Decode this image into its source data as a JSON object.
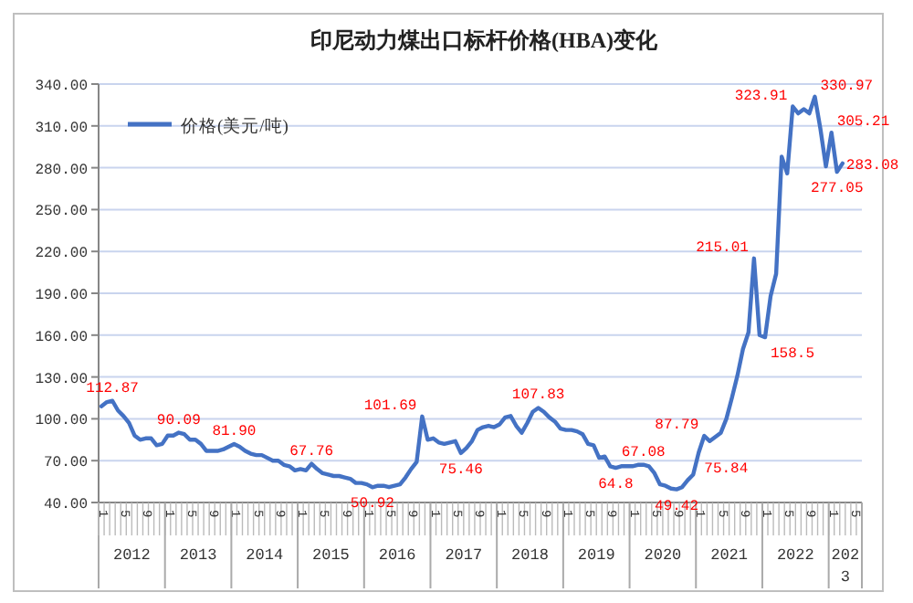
{
  "chart_data": {
    "type": "line",
    "title": "印尼动力煤出口标杆价格(HBA)变化",
    "categories": [
      "1",
      null,
      null,
      null,
      "5",
      null,
      null,
      null,
      "9",
      null,
      null,
      null,
      "1",
      null,
      null,
      null,
      "5",
      null,
      null,
      null,
      "9",
      null,
      null,
      null,
      "1",
      null,
      null,
      null,
      "5",
      null,
      null,
      null,
      "9",
      null,
      null,
      null,
      "1",
      null,
      null,
      null,
      "5",
      null,
      null,
      null,
      "9",
      null,
      null,
      null,
      "1",
      null,
      null,
      null,
      "5",
      null,
      null,
      null,
      "9",
      null,
      null,
      null,
      "1",
      null,
      null,
      null,
      "5",
      null,
      null,
      null,
      "9",
      null,
      null,
      null,
      "1",
      null,
      null,
      null,
      "5",
      null,
      null,
      null,
      "9",
      null,
      null,
      null,
      "1",
      null,
      null,
      null,
      "5",
      null,
      null,
      null,
      "9",
      null,
      null,
      null,
      "1",
      null,
      null,
      null,
      "5",
      null,
      null,
      null,
      "9",
      null,
      null,
      null,
      "1",
      null,
      null,
      null,
      "5",
      null,
      null,
      null,
      "9",
      null,
      null,
      null,
      "1",
      null,
      null,
      null,
      "5",
      null,
      null,
      null,
      "9",
      null,
      null,
      null,
      "1",
      null,
      null,
      null,
      "5",
      null
    ],
    "series": [
      {
        "name": "价格(美元/吨)",
        "color": "#4472c4",
        "values": [
          109,
          112,
          112.87,
          106,
          102,
          97,
          88,
          85,
          86,
          86,
          81,
          82,
          88,
          88,
          90.09,
          89,
          85,
          85,
          82,
          77,
          77,
          77,
          78,
          80,
          81.9,
          80,
          77,
          75,
          74,
          74,
          72,
          70,
          70,
          67,
          66,
          63,
          64,
          63,
          67.76,
          64,
          61,
          60,
          59,
          59,
          58,
          57,
          54,
          54,
          53,
          50.92,
          52,
          52,
          51,
          52,
          53,
          58,
          64,
          69,
          101.69,
          85,
          86,
          83,
          82,
          83,
          84,
          75.46,
          79,
          84,
          92,
          94,
          95,
          94,
          96,
          101,
          102,
          95,
          90,
          97,
          105,
          107.83,
          105,
          101,
          98,
          93,
          92,
          92,
          91,
          89,
          82,
          81,
          72,
          73,
          66,
          64.8,
          66,
          66,
          66,
          67,
          67.08,
          66,
          61,
          53,
          52,
          50,
          49.42,
          51,
          56,
          60,
          75.84,
          87.79,
          84,
          87,
          90,
          100,
          115,
          131,
          150,
          162,
          215.01,
          160,
          158.5,
          188,
          204,
          288,
          276,
          323.91,
          319,
          322,
          319,
          330.97,
          308,
          281,
          305.21,
          277.05,
          283.08,
          null,
          null,
          null
        ],
        "value_labels": [
          null,
          null,
          "112.87",
          null,
          null,
          null,
          null,
          null,
          null,
          null,
          null,
          null,
          null,
          null,
          "90.09",
          null,
          null,
          null,
          null,
          null,
          null,
          null,
          null,
          null,
          "81.90",
          null,
          null,
          null,
          null,
          null,
          null,
          null,
          null,
          null,
          null,
          null,
          null,
          null,
          "67.76",
          null,
          null,
          null,
          null,
          null,
          null,
          null,
          null,
          null,
          null,
          "50.92",
          null,
          null,
          null,
          null,
          null,
          null,
          null,
          null,
          "101.69",
          null,
          null,
          null,
          null,
          null,
          null,
          "75.46",
          null,
          null,
          null,
          null,
          null,
          null,
          null,
          null,
          null,
          null,
          null,
          null,
          null,
          "107.83",
          null,
          null,
          null,
          null,
          null,
          null,
          null,
          null,
          null,
          null,
          null,
          null,
          null,
          "64.8",
          null,
          null,
          null,
          null,
          "67.08",
          null,
          null,
          null,
          null,
          null,
          "49.42",
          null,
          null,
          null,
          "75.84",
          "87.79",
          null,
          null,
          null,
          null,
          null,
          null,
          null,
          null,
          "215.01",
          null,
          "158.5",
          null,
          null,
          null,
          null,
          "323.91",
          null,
          null,
          null,
          "330.97",
          null,
          null,
          "305.21",
          "277.05",
          "283.08",
          null,
          null,
          null
        ]
      }
    ],
    "annotations": [
      "2012",
      "2013",
      "2014",
      "2015",
      "2016",
      "2017",
      "2018",
      "2019",
      "2020",
      "2021",
      "2022",
      "2023"
    ],
    "ylim": [
      40,
      340
    ],
    "yticks": [
      {
        "value": 40,
        "label": "40.00"
      },
      {
        "value": 70,
        "label": "70.00"
      },
      {
        "value": 100,
        "label": "100.00"
      },
      {
        "value": 130,
        "label": "130.00"
      },
      {
        "value": 160,
        "label": "160.00"
      },
      {
        "value": 190,
        "label": "190.00"
      },
      {
        "value": 220,
        "label": "220.00"
      },
      {
        "value": 250,
        "label": "250.00"
      },
      {
        "value": 280,
        "label": "280.00"
      },
      {
        "value": 310,
        "label": "310.00"
      },
      {
        "value": 340,
        "label": "340.00"
      }
    ],
    "grid": "y",
    "legend": "top left"
  }
}
